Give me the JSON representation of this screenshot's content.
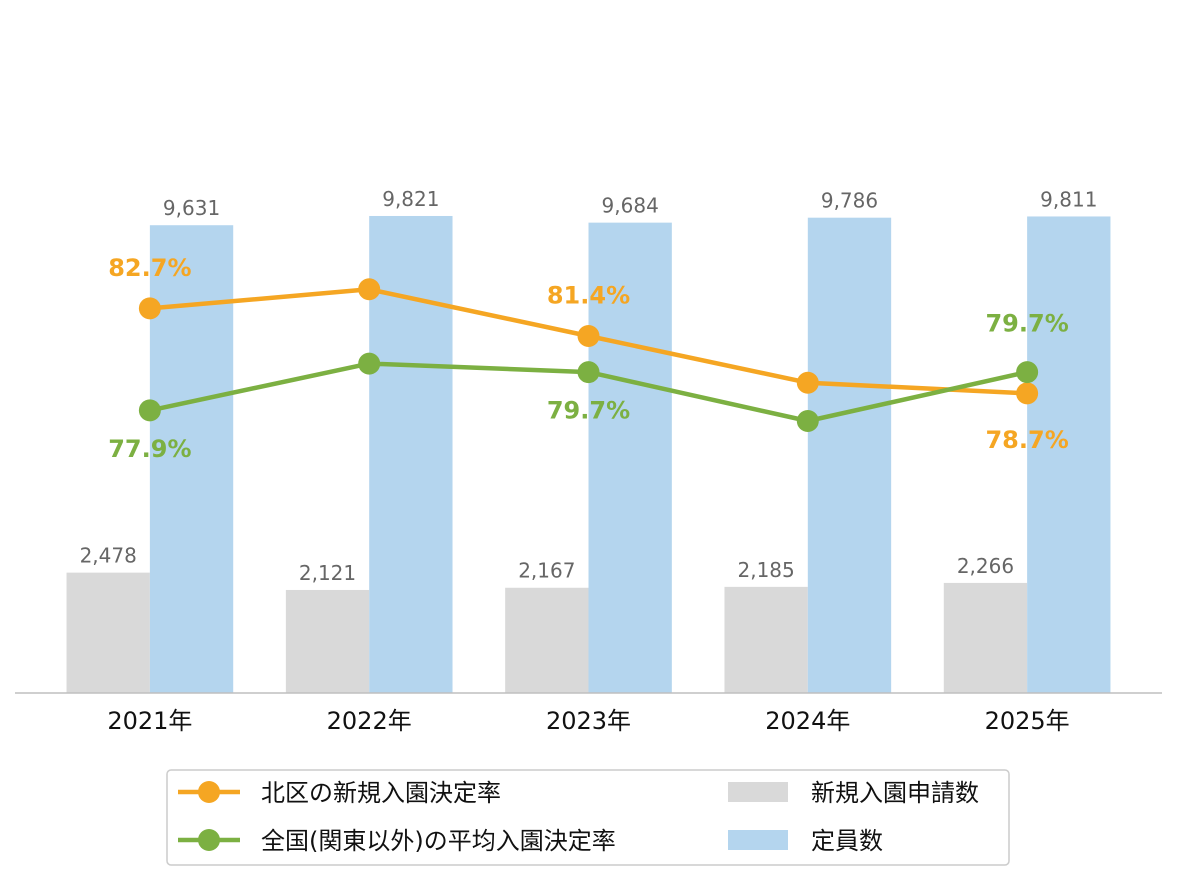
{
  "chart_data": {
    "type": "bar",
    "categories": [
      "2021年",
      "2022年",
      "2023年",
      "2024年",
      "2025年"
    ],
    "series": [
      {
        "name": "新規入園申請数",
        "type": "bar",
        "axis": "left",
        "values": [
          2478,
          2121,
          2167,
          2185,
          2266
        ],
        "data_labels": [
          "2,478",
          "2,121",
          "2,167",
          "2,185",
          "2,266"
        ],
        "color": "#D9D9D9"
      },
      {
        "name": "定員数",
        "type": "bar",
        "axis": "left",
        "values": [
          9631,
          9821,
          9684,
          9786,
          9811
        ],
        "data_labels": [
          "9,631",
          "9,821",
          "9,684",
          "9,786",
          "9,811"
        ],
        "color": "#B4D5EE"
      },
      {
        "name": "北区の新規入園決定率",
        "type": "line",
        "axis": "right",
        "values": [
          82.7,
          83.6,
          81.4,
          79.2,
          78.7
        ],
        "data_labels": [
          "82.7%",
          null,
          "81.4%",
          null,
          "78.7%"
        ],
        "color": "#F5A623"
      },
      {
        "name": "全国(関東以外)の平均入園決定率",
        "type": "line",
        "axis": "right",
        "values": [
          77.9,
          80.1,
          79.7,
          77.4,
          79.7
        ],
        "data_labels": [
          "77.9%",
          null,
          "79.7%",
          null,
          "79.7%"
        ],
        "color": "#7CB042"
      }
    ],
    "y_left_lim": [
      0,
      14000
    ],
    "y_right_lim": [
      64.6,
      96.6
    ],
    "y_axes_visible": false,
    "grid": false,
    "legend": {
      "position": "bottom",
      "columns": 2
    },
    "data_label_color": "#666666",
    "axis_line_color": "#BFBFBF"
  }
}
